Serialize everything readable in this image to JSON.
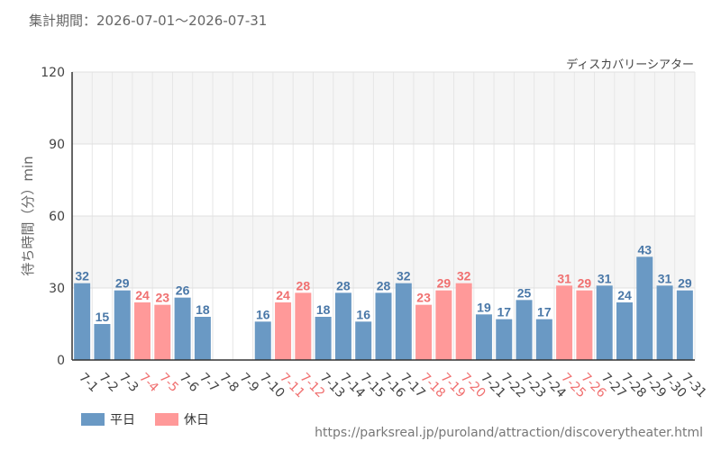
{
  "header": {
    "period": "集計期間：2026-07-01～2026-07-31"
  },
  "chart_data": {
    "type": "bar",
    "caption": "ディスカバリーシアター",
    "ylabel": "待ち時間（分）min",
    "ylim": [
      0,
      120
    ],
    "yticks": [
      "0",
      "30",
      "60",
      "90",
      "120"
    ],
    "categories": [
      "7-1",
      "7-2",
      "7-3",
      "7-4",
      "7-5",
      "7-6",
      "7-7",
      "7-8",
      "7-9",
      "7-10",
      "7-11",
      "7-12",
      "7-13",
      "7-14",
      "7-15",
      "7-16",
      "7-17",
      "7-18",
      "7-19",
      "7-20",
      "7-21",
      "7-22",
      "7-23",
      "7-24",
      "7-25",
      "7-26",
      "7-27",
      "7-28",
      "7-29",
      "7-30",
      "7-31"
    ],
    "values": [
      32,
      15,
      29,
      24,
      23,
      26,
      18,
      null,
      null,
      16,
      24,
      28,
      18,
      28,
      16,
      28,
      32,
      23,
      29,
      32,
      19,
      17,
      25,
      17,
      31,
      29,
      31,
      24,
      43,
      31,
      29
    ],
    "day_type": [
      "w",
      "w",
      "w",
      "h",
      "h",
      "w",
      "w",
      "w",
      "w",
      "w",
      "h",
      "h",
      "w",
      "w",
      "w",
      "w",
      "w",
      "h",
      "h",
      "h",
      "w",
      "w",
      "w",
      "w",
      "h",
      "h",
      "w",
      "w",
      "w",
      "w",
      "w"
    ],
    "series": [
      {
        "name": "平日",
        "key": "w",
        "color": "#6a99c4",
        "label_color": "#4a78a8",
        "tick_color": "#444444"
      },
      {
        "name": "休日",
        "key": "h",
        "color": "#ff9999",
        "label_color": "#f07070",
        "tick_color": "#f07070"
      }
    ],
    "grid": true
  },
  "footer": {
    "source": "https://parksreal.jp/puroland/attraction/discoverytheater.html"
  }
}
